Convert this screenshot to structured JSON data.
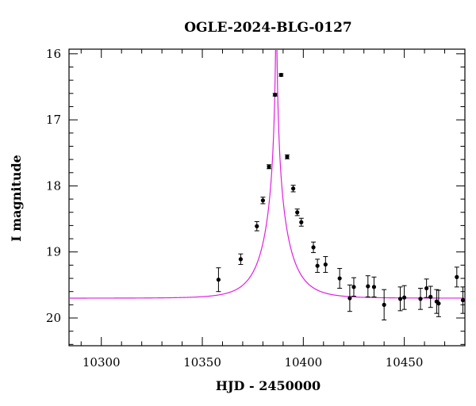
{
  "chart_data": {
    "type": "scatter",
    "title": "OGLE-2024-BLG-0127",
    "xlabel": "HJD - 2450000",
    "ylabel": "I magnitude",
    "xlim": [
      10284,
      10480
    ],
    "ylim": [
      20.42,
      15.93
    ],
    "y_inverted": true,
    "xticks": [
      10300,
      10350,
      10400,
      10450
    ],
    "yticks": [
      16,
      17,
      18,
      19,
      20
    ],
    "x_minor_step": 10,
    "y_minor_step": 0.2,
    "grid": false,
    "legend": "none",
    "colors": {
      "points": "#000000",
      "model": "#e020e0",
      "axes": "#000000"
    },
    "series": [
      {
        "kind": "points_with_errorbars",
        "points": [
          {
            "x": 10358,
            "y": 19.42,
            "err": 0.18
          },
          {
            "x": 10369,
            "y": 19.11,
            "err": 0.08
          },
          {
            "x": 10377,
            "y": 18.61,
            "err": 0.07
          },
          {
            "x": 10380,
            "y": 18.22,
            "err": 0.05
          },
          {
            "x": 10383,
            "y": 17.71,
            "err": 0.03
          },
          {
            "x": 10386,
            "y": 16.62,
            "err": 0.02
          },
          {
            "x": 10389,
            "y": 16.32,
            "err": 0.02
          },
          {
            "x": 10392,
            "y": 17.56,
            "err": 0.03
          },
          {
            "x": 10395,
            "y": 18.04,
            "err": 0.05
          },
          {
            "x": 10397,
            "y": 18.4,
            "err": 0.05
          },
          {
            "x": 10399,
            "y": 18.55,
            "err": 0.06
          },
          {
            "x": 10405,
            "y": 18.93,
            "err": 0.08
          },
          {
            "x": 10407,
            "y": 19.21,
            "err": 0.1
          },
          {
            "x": 10411,
            "y": 19.19,
            "err": 0.12
          },
          {
            "x": 10418,
            "y": 19.4,
            "err": 0.15
          },
          {
            "x": 10423,
            "y": 19.7,
            "err": 0.2
          },
          {
            "x": 10425,
            "y": 19.53,
            "err": 0.14
          },
          {
            "x": 10432,
            "y": 19.52,
            "err": 0.16
          },
          {
            "x": 10435,
            "y": 19.53,
            "err": 0.15
          },
          {
            "x": 10440,
            "y": 19.8,
            "err": 0.23
          },
          {
            "x": 10448,
            "y": 19.71,
            "err": 0.18
          },
          {
            "x": 10450,
            "y": 19.69,
            "err": 0.18
          },
          {
            "x": 10458,
            "y": 19.71,
            "err": 0.16
          },
          {
            "x": 10461,
            "y": 19.55,
            "err": 0.14
          },
          {
            "x": 10463,
            "y": 19.68,
            "err": 0.16
          },
          {
            "x": 10466,
            "y": 19.75,
            "err": 0.18
          },
          {
            "x": 10467,
            "y": 19.78,
            "err": 0.2
          },
          {
            "x": 10476,
            "y": 19.38,
            "err": 0.15
          },
          {
            "x": 10479,
            "y": 19.73,
            "err": 0.2
          }
        ]
      },
      {
        "kind": "model_curve",
        "model": {
          "t0": 10386.6,
          "tE": 13.0,
          "u0": 0.018,
          "I_base": 19.7
        },
        "x_range": [
          10284,
          10480
        ]
      }
    ]
  }
}
